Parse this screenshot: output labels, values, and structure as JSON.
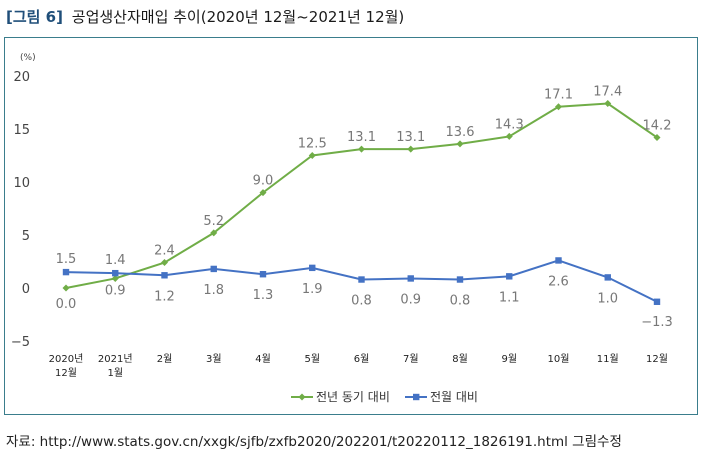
{
  "figure": {
    "label": "[그림 6]",
    "title": "공업생산자매입 추이(2020년 12월~2021년 12월)"
  },
  "source": "자료: http://www.stats.gov.cn/xxgk/sjfb/zxfb2020/202201/t20220112_1826191.html 그림수정",
  "colors": {
    "yoy": "#70ad47",
    "mom": "#4472c4",
    "frame": "#3a7d8c"
  },
  "chart_data": {
    "type": "line",
    "unit_label": "(%)",
    "categories": [
      [
        "2020년",
        "12월"
      ],
      [
        "2021년",
        "1월"
      ],
      [
        "2월"
      ],
      [
        "3월"
      ],
      [
        "4월"
      ],
      [
        "5월"
      ],
      [
        "6월"
      ],
      [
        "7월"
      ],
      [
        "8월"
      ],
      [
        "9월"
      ],
      [
        "10월"
      ],
      [
        "11월"
      ],
      [
        "12월"
      ]
    ],
    "ylim": [
      -5,
      20
    ],
    "yticks": [
      -5,
      0,
      5,
      10,
      15,
      20
    ],
    "grid": false,
    "legend_position": "bottom",
    "series": [
      {
        "name": "전년 동기 대비",
        "marker": "diamond",
        "values": [
          0.0,
          0.9,
          2.4,
          5.2,
          9.0,
          12.5,
          13.1,
          13.1,
          13.6,
          14.3,
          17.1,
          17.4,
          14.2
        ],
        "labels": [
          "0.0",
          "0.9",
          "2.4",
          "5.2",
          "9.0",
          "12.5",
          "13.1",
          "13.1",
          "13.6",
          "14.3",
          "17.1",
          "17.4",
          "14.2"
        ]
      },
      {
        "name": "전월 대비",
        "marker": "square",
        "values": [
          1.5,
          1.4,
          1.2,
          1.8,
          1.3,
          1.9,
          0.8,
          0.9,
          0.8,
          1.1,
          2.6,
          1.0,
          -1.3
        ],
        "labels": [
          "1.5",
          "1.4",
          "1.2",
          "1.8",
          "1.3",
          "1.9",
          "0.8",
          "0.9",
          "0.8",
          "1.1",
          "2.6",
          "1.0",
          "−1.3"
        ]
      }
    ]
  }
}
